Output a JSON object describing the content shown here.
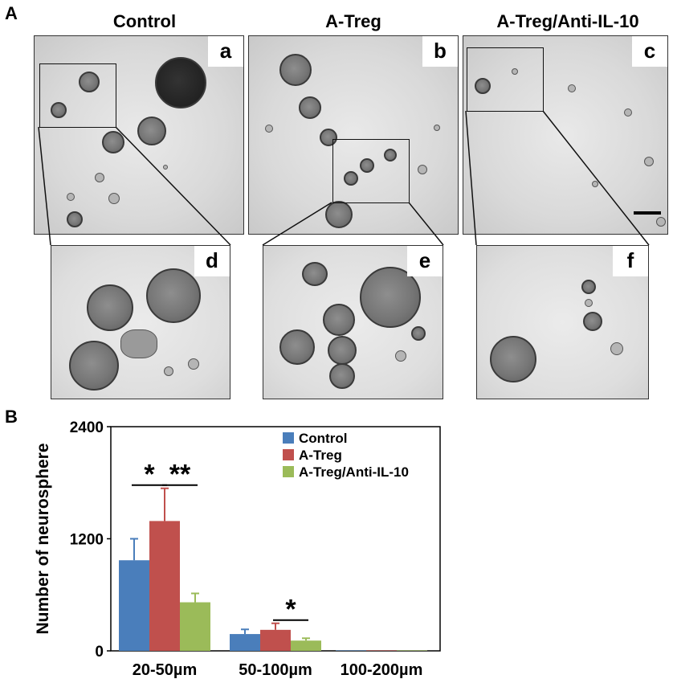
{
  "panel_a": {
    "label": "A",
    "columns": [
      "Control",
      "A-Treg",
      "A-Treg/Anti-IL-10"
    ],
    "image_tags": [
      "a",
      "b",
      "c"
    ],
    "zoom_tags": [
      "d",
      "e",
      "f"
    ]
  },
  "panel_b": {
    "label": "B"
  },
  "chart_data": {
    "type": "bar",
    "ylabel": "Number of neurosphere",
    "xlabel": "",
    "ylim": [
      0,
      2400
    ],
    "yticks": [
      0,
      1200,
      2400
    ],
    "categories": [
      "20-50µm",
      "50-100µm",
      "100-200µm"
    ],
    "legend_position": "top-right",
    "grid": false,
    "series": [
      {
        "name": "Control",
        "color": "#4a7ebb",
        "values": [
          970,
          180,
          5
        ],
        "errors": [
          230,
          50,
          0
        ]
      },
      {
        "name": "A-Treg",
        "color": "#c0504d",
        "values": [
          1390,
          225,
          5
        ],
        "errors": [
          350,
          70,
          0
        ]
      },
      {
        "name": "A-Treg/Anti-IL-10",
        "color": "#9bbb59",
        "values": [
          520,
          110,
          5
        ],
        "errors": [
          95,
          25,
          0
        ]
      }
    ],
    "significance": [
      {
        "label": "*",
        "category": 0,
        "from_series": 0,
        "to_series": 1
      },
      {
        "label": "**",
        "category": 0,
        "from_series": 1,
        "to_series": 2
      },
      {
        "label": "*",
        "category": 1,
        "from_series": 1,
        "to_series": 2
      }
    ]
  }
}
